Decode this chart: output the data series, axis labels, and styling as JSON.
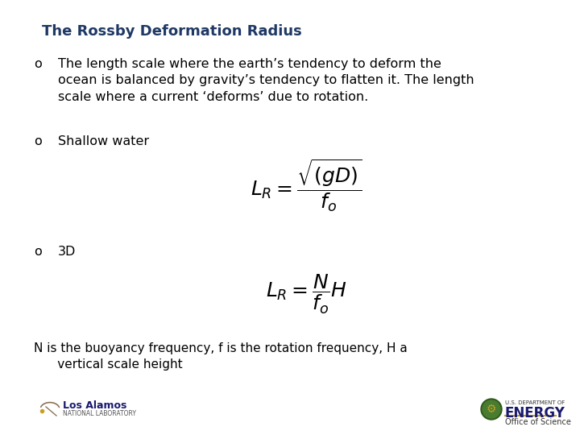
{
  "background_color": "#ffffff",
  "title": "The Rossby Deformation Radius",
  "title_color": "#1F3864",
  "title_fontsize": 13,
  "bullet_marker": "o",
  "bullet1_text": "The length scale where the earth’s tendency to deform the\nocean is balanced by gravity’s tendency to flatten it. The length\nscale where a current ‘deforms’ due to rotation.",
  "bullet2_text": "Shallow water",
  "bullet3_text": "3D",
  "formula_shallow": "$L_R = \\dfrac{\\sqrt{(gD)}}{f_o}$",
  "formula_3d": "$L_R = \\dfrac{N}{f_o}H$",
  "footnote_line1": "N is the buoyancy frequency, f is the rotation frequency, H a",
  "footnote_line2": "      vertical scale height",
  "text_color": "#000000",
  "text_fontsize": 11.5,
  "footnote_fontsize": 11.0,
  "formula_fontsize": 18,
  "los_alamos_text": "Los Alamos",
  "los_alamos_sub": "NATIONAL LABORATORY",
  "energy_text": "ENERGY",
  "energy_sub": "Office of Science",
  "energy_dept": "U.S. DEPARTMENT OF"
}
